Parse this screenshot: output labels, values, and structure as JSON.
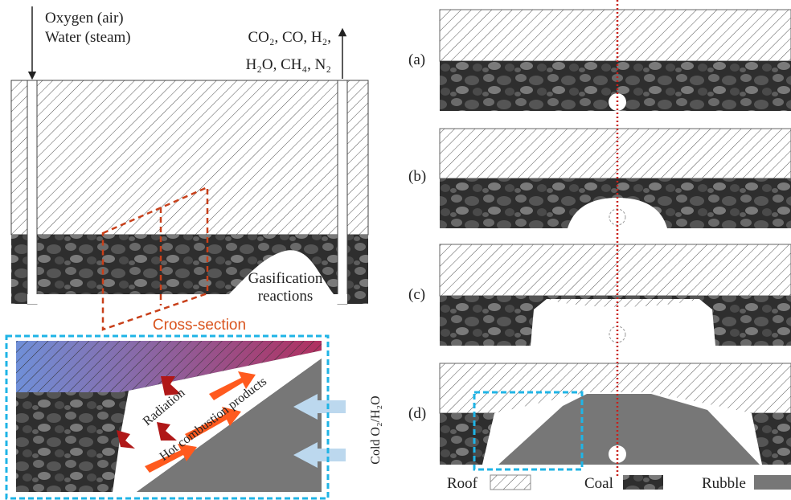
{
  "left": {
    "inlet_label": [
      "Oxygen (air)",
      "Water (steam)"
    ],
    "outlet_label": [
      "CO₂, CO, H₂,",
      "H₂O, CH₄, N₂"
    ],
    "reaction_label": [
      "Gasification",
      "reactions"
    ],
    "cross_section_label": "Cross-section"
  },
  "inset": {
    "radiation": "Radiation",
    "hot_products": "Hot combustion products",
    "cold_input": "Cold O₂/H₂O"
  },
  "panels": [
    "(a)",
    "(b)",
    "(c)",
    "(d)"
  ],
  "legend": [
    "Roof",
    "Coal",
    "Rubble"
  ]
}
